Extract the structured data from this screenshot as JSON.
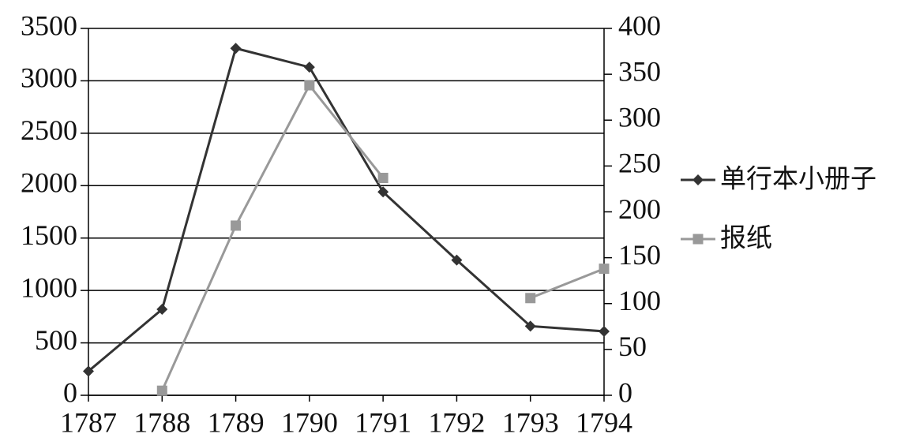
{
  "chart_data": {
    "type": "line",
    "x": [
      1787,
      1788,
      1789,
      1790,
      1791,
      1792,
      1793,
      1794
    ],
    "xlim": [
      1787,
      1794
    ],
    "xticks": [
      1787,
      1788,
      1789,
      1790,
      1791,
      1792,
      1793,
      1794
    ],
    "ylim": [
      0,
      3500
    ],
    "yticks": [
      0,
      500,
      1000,
      1500,
      2000,
      2500,
      3000,
      3500
    ],
    "y2lim": [
      0,
      400
    ],
    "y2ticks": [
      0,
      50,
      100,
      150,
      200,
      250,
      300,
      350,
      400
    ],
    "grid": true,
    "legend": "right",
    "series": [
      {
        "name": "单行本小册子",
        "color": "#333333",
        "marker": "diamond",
        "values": [
          230,
          820,
          3310,
          3130,
          1940,
          1290,
          660,
          610
        ]
      },
      {
        "name": "报纸",
        "color": "#999999",
        "marker": "square",
        "axis": "y2",
        "values": [
          null,
          5,
          185,
          338,
          237,
          null,
          106,
          138
        ]
      }
    ]
  }
}
